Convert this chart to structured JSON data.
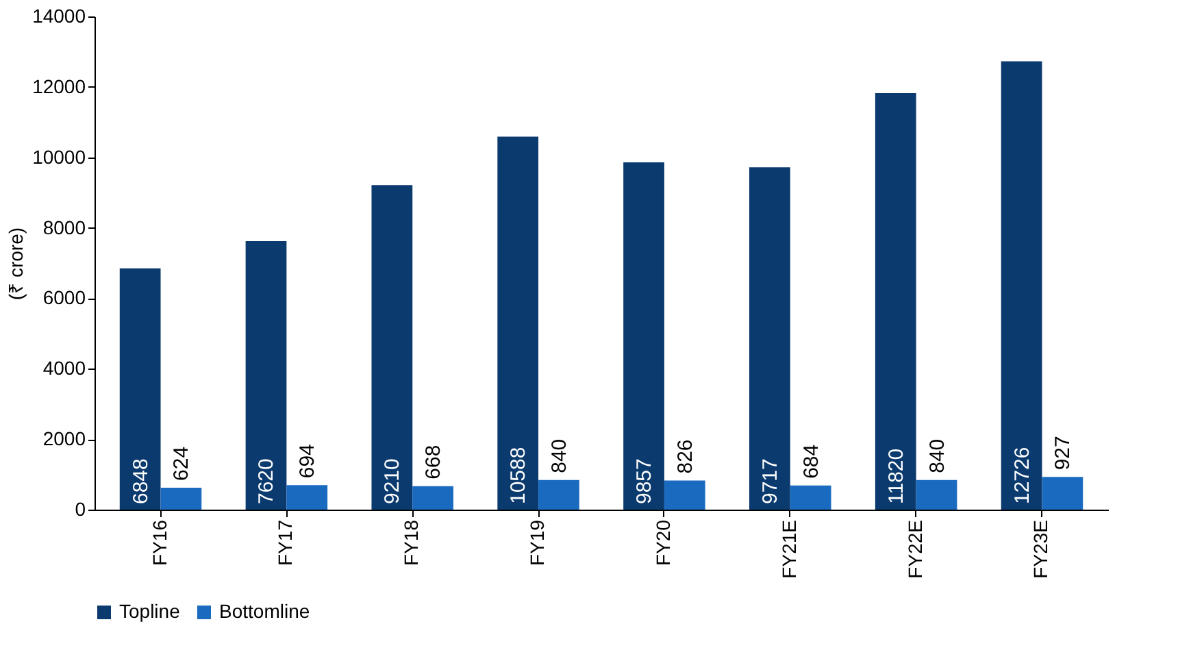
{
  "chart_data": {
    "type": "bar",
    "ylabel": "(₹ crore)",
    "categories": [
      "FY16",
      "FY17",
      "FY18",
      "FY19",
      "FY20",
      "FY21E",
      "FY22E",
      "FY23E"
    ],
    "series": [
      {
        "name": "Topline",
        "color": "#0b3a6e",
        "values": [
          6848,
          7620,
          9210,
          10588,
          9857,
          9717,
          11820,
          12726
        ]
      },
      {
        "name": "Bottomline",
        "color": "#1a6bbf",
        "values": [
          624,
          694,
          668,
          840,
          826,
          684,
          840,
          927
        ]
      }
    ],
    "ylim": [
      0,
      14000
    ],
    "yticks": [
      0,
      2000,
      4000,
      6000,
      8000,
      10000,
      12000,
      14000
    ],
    "grid": false,
    "legend": "bottom",
    "data_labels": true
  }
}
